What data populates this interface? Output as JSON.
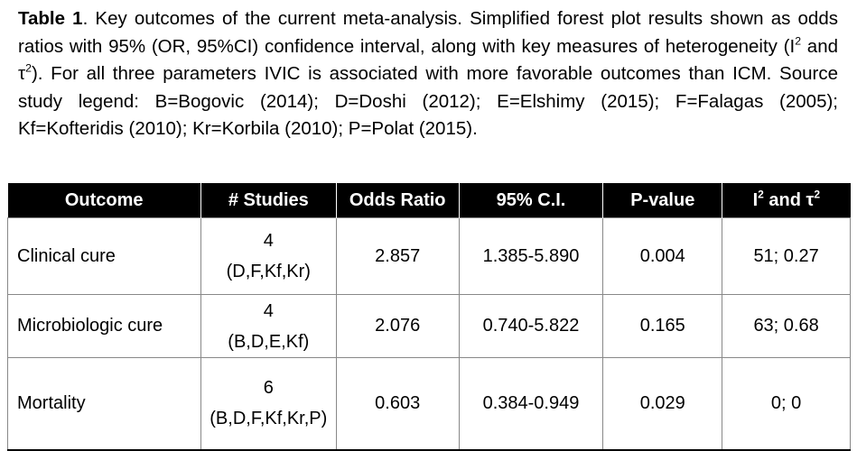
{
  "caption": {
    "label": "Table 1",
    "parts": [
      ". Key outcomes of the current meta-analysis. Simplified forest plot results shown as odds ratios with 95% (OR, 95%CI) confidence interval, along with key measures of heterogeneity (I",
      "2",
      " and τ",
      "2",
      "). For all three parameters IVIC is associated with more favorable outcomes than ICM. Source study legend: B=Bogovic (2014); D=Doshi (2012); E=Elshimy (2015); F=Falagas (2005); Kf=Kofteridis (2010); Kr=Korbila (2010); P=Polat (2015)."
    ]
  },
  "table": {
    "header": [
      "Outcome",
      "# Studies",
      "Odds Ratio",
      "95% C.I.",
      "P-value",
      [
        "I",
        "2",
        " and τ",
        "2"
      ]
    ],
    "rows": [
      [
        "Clinical cure",
        [
          "4",
          "(D,F,Kf,Kr)"
        ],
        "2.857",
        "1.385-5.890",
        "0.004",
        "51; 0.27"
      ],
      [
        "Microbiologic cure",
        [
          "4",
          "(B,D,E,Kf)"
        ],
        "2.076",
        "0.740-5.822",
        "0.165",
        "63; 0.68"
      ],
      [
        "Mortality",
        [
          "6",
          "(B,D,F,Kf,Kr,P)"
        ],
        "0.603",
        "0.384-0.949",
        "0.029",
        "0; 0"
      ]
    ]
  }
}
